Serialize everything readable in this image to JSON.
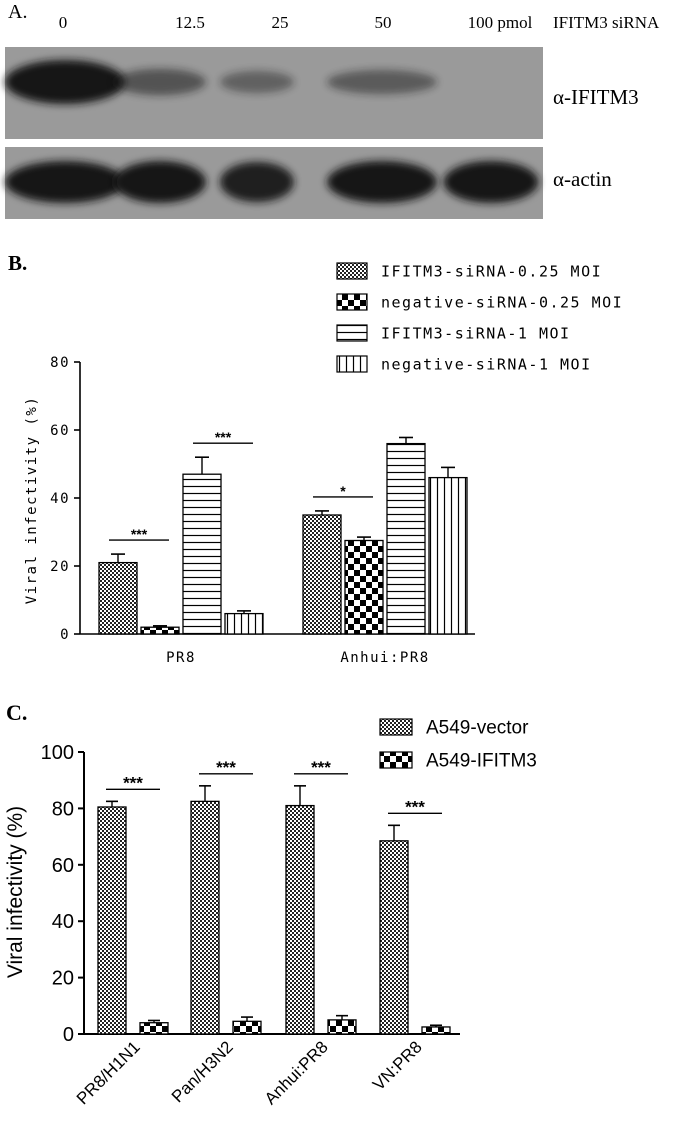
{
  "panel_a": {
    "label": "A.",
    "lane_labels": [
      "0",
      "12.5",
      "25",
      "50",
      "100 pmol"
    ],
    "lane_suffix": "IFITM3 siRNA",
    "blots": [
      {
        "name": "α-IFITM3",
        "intensities": [
          1.0,
          0.35,
          0.22,
          0.28,
          0.0
        ]
      },
      {
        "name": "α-actin",
        "intensities": [
          1.0,
          0.95,
          0.85,
          1.0,
          0.95
        ]
      }
    ]
  },
  "chart_data": [
    {
      "panel_label": "B.",
      "type": "bar",
      "ylabel": "Viral infectivity (%)",
      "xlabel": "",
      "ylim": [
        0,
        80
      ],
      "yticks": [
        0,
        20,
        40,
        60,
        80
      ],
      "categories": [
        "PR8",
        "Anhui:PR8"
      ],
      "series": [
        {
          "name": "IFITM3-siRNA-0.25 MOI",
          "pattern": "fine-check",
          "values": [
            21,
            35
          ],
          "errors": [
            2.5,
            1.2
          ]
        },
        {
          "name": "negative-siRNA-0.25 MOI",
          "pattern": "coarse-check",
          "values": [
            2,
            27.5
          ],
          "errors": [
            0.4,
            1.0
          ]
        },
        {
          "name": "IFITM3-siRNA-1 MOI",
          "pattern": "horizontal",
          "values": [
            47,
            56
          ],
          "errors": [
            5.0,
            1.8
          ]
        },
        {
          "name": "negative-siRNA-1 MOI",
          "pattern": "vertical",
          "values": [
            6,
            46
          ],
          "errors": [
            0.8,
            3.0
          ]
        }
      ],
      "significance": [
        {
          "category": 0,
          "from": 0,
          "to": 1,
          "label": "***"
        },
        {
          "category": 0,
          "from": 2,
          "to": 3,
          "label": "***"
        },
        {
          "category": 1,
          "from": 0,
          "to": 1,
          "label": "*"
        }
      ],
      "legend_position": "top-right",
      "grid": false
    },
    {
      "panel_label": "C.",
      "type": "bar",
      "ylabel": "Viral infectivity (%)",
      "xlabel": "",
      "ylim": [
        0,
        100
      ],
      "yticks": [
        0,
        20,
        40,
        60,
        80,
        100
      ],
      "categories": [
        "PR8/H1N1",
        "Pan/H3N2",
        "Anhui:PR8",
        "VN:PR8"
      ],
      "series": [
        {
          "name": "A549-vector",
          "pattern": "fine-check",
          "values": [
            80.5,
            82.5,
            81,
            68.5
          ],
          "errors": [
            2.0,
            5.5,
            7.0,
            5.5
          ]
        },
        {
          "name": "A549-IFITM3",
          "pattern": "coarse-check",
          "values": [
            4,
            4.5,
            5,
            2.5
          ],
          "errors": [
            0.8,
            1.5,
            1.5,
            0.6
          ]
        }
      ],
      "significance": [
        {
          "category": 0,
          "from": 0,
          "to": 1,
          "label": "***"
        },
        {
          "category": 1,
          "from": 0,
          "to": 1,
          "label": "***"
        },
        {
          "category": 2,
          "from": 0,
          "to": 1,
          "label": "***"
        },
        {
          "category": 3,
          "from": 0,
          "to": 1,
          "label": "***"
        }
      ],
      "legend_position": "top-right",
      "grid": false
    }
  ],
  "colors": {
    "ink": "#000000",
    "blot_bg": "#9a9a9a",
    "band": "#161616"
  }
}
